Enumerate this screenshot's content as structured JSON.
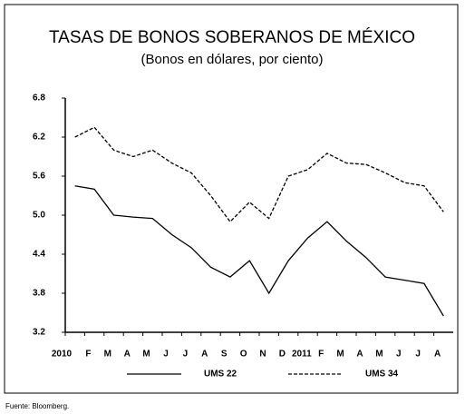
{
  "chart_data": {
    "type": "line",
    "title": "TASAS DE BONOS SOBERANOS DE MÉXICO",
    "subtitle": "(Bonos en dólares, por ciento)",
    "categories": [
      "2010",
      "F",
      "M",
      "A",
      "M",
      "J",
      "J",
      "A",
      "S",
      "O",
      "N",
      "D",
      "2011",
      "F",
      "M",
      "A",
      "M",
      "J",
      "J",
      "A"
    ],
    "series": [
      {
        "name": "UMS 22",
        "color": "#000000",
        "dashed": false,
        "values": [
          5.45,
          5.4,
          5.0,
          4.97,
          4.95,
          4.7,
          4.5,
          4.2,
          4.05,
          4.3,
          3.8,
          4.3,
          4.65,
          4.9,
          4.6,
          4.35,
          4.05,
          4.0,
          3.95,
          3.45
        ]
      },
      {
        "name": "UMS 34",
        "color": "#000000",
        "dashed": true,
        "values": [
          6.2,
          6.35,
          6.0,
          5.9,
          6.0,
          5.8,
          5.65,
          5.3,
          4.9,
          5.2,
          4.95,
          5.6,
          5.7,
          5.95,
          5.8,
          5.78,
          5.65,
          5.5,
          5.45,
          5.05
        ]
      }
    ],
    "ylim": [
      3.2,
      6.8
    ],
    "yticks": [
      3.2,
      3.8,
      4.4,
      {
        "value": 5,
        "label": "5.0"
      },
      5.6,
      6.2,
      6.8
    ],
    "source": "Fuente: Bloomberg."
  }
}
